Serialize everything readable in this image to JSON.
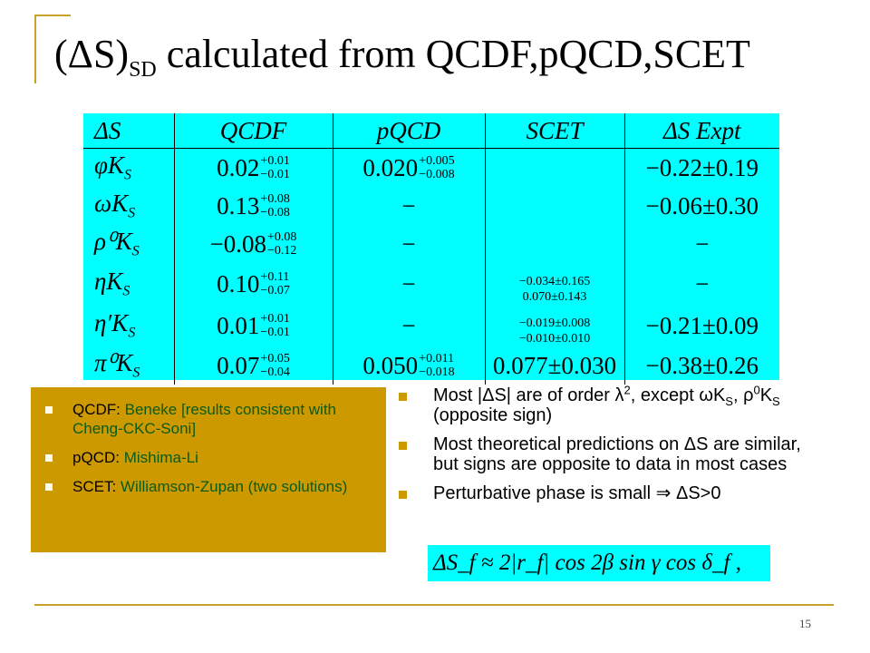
{
  "title": {
    "prefix": "(ΔS)",
    "subscript": "SD",
    "suffix": " calculated from QCDF,pQCD,SCET"
  },
  "table": {
    "headers": [
      "ΔS",
      "QCDF",
      "pQCD",
      "SCET",
      "ΔS Expt"
    ],
    "rows": [
      {
        "meson": "φK_S",
        "qcdf": {
          "central": "0.02",
          "plus": "+0.01",
          "minus": "−0.01"
        },
        "pqcd": {
          "central": "0.020",
          "plus": "+0.005",
          "minus": "−0.008"
        },
        "scet": {
          "lines": []
        },
        "expt": "−0.22±0.19"
      },
      {
        "meson": "ωK_S",
        "qcdf": {
          "central": "0.13",
          "plus": "+0.08",
          "minus": "−0.08"
        },
        "pqcd": {
          "dash": "−"
        },
        "scet": {
          "lines": []
        },
        "expt": "−0.06±0.30"
      },
      {
        "meson": "ρ⁰K_S",
        "qcdf": {
          "central": "−0.08",
          "plus": "+0.08",
          "minus": "−0.12"
        },
        "pqcd": {
          "dash": "−"
        },
        "scet": {
          "lines": []
        },
        "expt": "−"
      },
      {
        "meson": "ηK_S",
        "qcdf": {
          "central": "0.10",
          "plus": "+0.11",
          "minus": "−0.07"
        },
        "pqcd": {
          "dash": "−"
        },
        "scet": {
          "lines": [
            "−0.034±0.165",
            "0.070±0.143"
          ]
        },
        "expt": "−"
      },
      {
        "meson": "η′K_S",
        "qcdf": {
          "central": "0.01",
          "plus": "+0.01",
          "minus": "−0.01"
        },
        "pqcd": {
          "dash": "−"
        },
        "scet": {
          "lines": [
            "−0.019±0.008",
            "−0.010±0.010"
          ]
        },
        "expt": "−0.21±0.09"
      },
      {
        "meson": "π⁰K_S",
        "qcdf": {
          "central": "0.07",
          "plus": "+0.05",
          "minus": "−0.04"
        },
        "pqcd": {
          "central": "0.050",
          "plus": "+0.011",
          "minus": "−0.018"
        },
        "scet": {
          "single": "0.077±0.030"
        },
        "expt": "−0.38±0.26"
      }
    ]
  },
  "references": [
    {
      "label": "QCDF: ",
      "authors": "Beneke [results consistent with Cheng-CKC-Soni]"
    },
    {
      "label": "pQCD: ",
      "authors": "Mishima-Li"
    },
    {
      "label": "SCET: ",
      "authors": "Williamson-Zupan (two solutions)"
    }
  ],
  "notes": {
    "n1_a": "Most |ΔS| are of order λ",
    "n1_sup": "2",
    "n1_b": ", except ωK",
    "n1_sub1": "S",
    "n1_c": ", ρ",
    "n1_sup2": "0",
    "n1_d": "K",
    "n1_sub2": "S",
    "n1_e": " (opposite sign)",
    "n2": "Most theoretical predictions on ΔS are similar, but signs are opposite to data in most cases",
    "n3": "Perturbative phase is small ⇒ ΔS>0"
  },
  "formula": "ΔS_f ≈ 2|r_f| cos 2β sin γ cos δ_f ,",
  "page_number": "15",
  "colors": {
    "table_bg": "#00ffff",
    "refs_bg": "#cc9900",
    "ref_authors": "#0b5b18",
    "frame": "#c9a227"
  }
}
